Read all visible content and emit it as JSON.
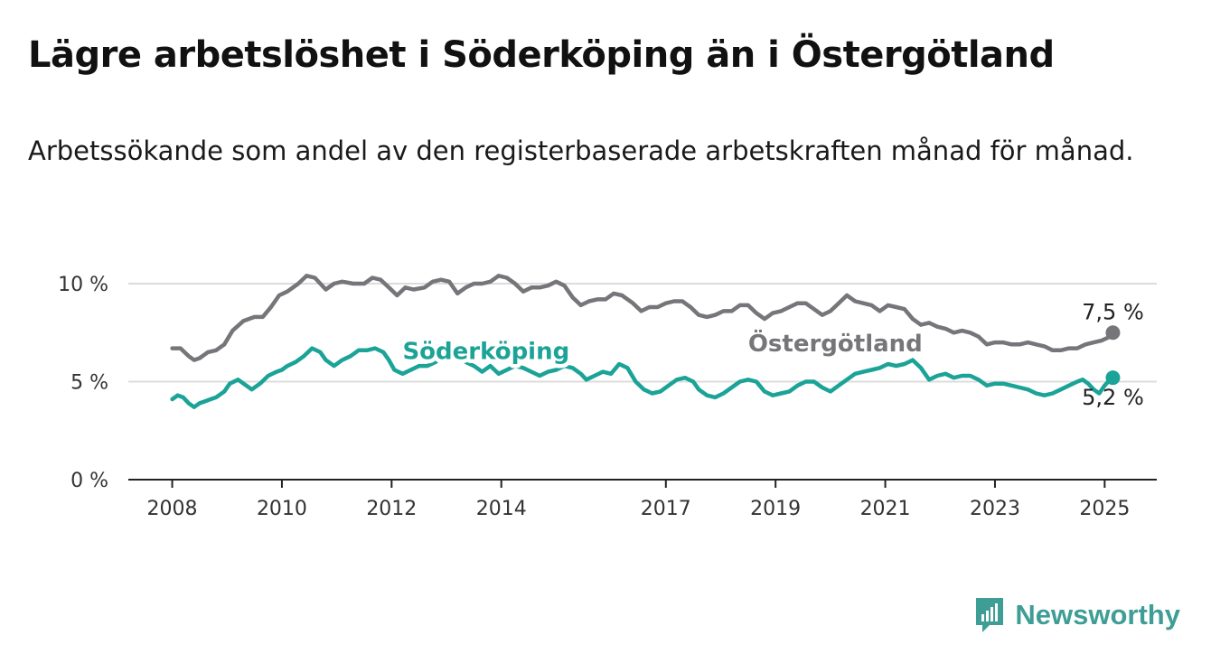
{
  "title": "Lägre arbetslöshet i Söderköping än i Östergötland",
  "subtitle": "Arbetssökande som andel av den registerbaserade arbetskraften månad för månad.",
  "brand": {
    "name": "Newsworthy",
    "icon": "newsworthy-logo-icon",
    "color": "#3e9e95"
  },
  "chart_data": {
    "type": "line",
    "title": "Lägre arbetslöshet i Söderköping än i Östergötland",
    "subtitle": "Arbetssökande som andel av den registerbaserade arbetskraften månad för månad.",
    "x_range": [
      2007.2,
      2025.95
    ],
    "ylim": [
      0,
      10
    ],
    "y_ticks": [
      {
        "value": 0,
        "label": "0 %"
      },
      {
        "value": 5,
        "label": "5 %"
      },
      {
        "value": 10,
        "label": "10 %"
      }
    ],
    "x_ticks": [
      {
        "value": 2008,
        "label": "2008"
      },
      {
        "value": 2010,
        "label": "2010"
      },
      {
        "value": 2012,
        "label": "2012"
      },
      {
        "value": 2014,
        "label": "2014"
      },
      {
        "value": 2017,
        "label": "2017"
      },
      {
        "value": 2019,
        "label": "2019"
      },
      {
        "value": 2021,
        "label": "2021"
      },
      {
        "value": 2023,
        "label": "2023"
      },
      {
        "value": 2025,
        "label": "2025"
      }
    ],
    "grid": true,
    "series": [
      {
        "name": "Östergötland",
        "color": "#76767a",
        "end_label": "7,5 %",
        "points": [
          [
            2008.0,
            6.7
          ],
          [
            2008.15,
            6.7
          ],
          [
            2008.3,
            6.3
          ],
          [
            2008.4,
            6.1
          ],
          [
            2008.5,
            6.2
          ],
          [
            2008.65,
            6.5
          ],
          [
            2008.8,
            6.6
          ],
          [
            2008.95,
            6.9
          ],
          [
            2009.1,
            7.6
          ],
          [
            2009.3,
            8.1
          ],
          [
            2009.5,
            8.3
          ],
          [
            2009.65,
            8.3
          ],
          [
            2009.8,
            8.8
          ],
          [
            2009.95,
            9.4
          ],
          [
            2010.1,
            9.6
          ],
          [
            2010.3,
            10.0
          ],
          [
            2010.45,
            10.4
          ],
          [
            2010.6,
            10.3
          ],
          [
            2010.8,
            9.7
          ],
          [
            2010.95,
            10.0
          ],
          [
            2011.1,
            10.1
          ],
          [
            2011.3,
            10.0
          ],
          [
            2011.5,
            10.0
          ],
          [
            2011.65,
            10.3
          ],
          [
            2011.8,
            10.2
          ],
          [
            2011.95,
            9.8
          ],
          [
            2012.1,
            9.4
          ],
          [
            2012.25,
            9.8
          ],
          [
            2012.4,
            9.7
          ],
          [
            2012.6,
            9.8
          ],
          [
            2012.75,
            10.1
          ],
          [
            2012.9,
            10.2
          ],
          [
            2013.05,
            10.1
          ],
          [
            2013.2,
            9.5
          ],
          [
            2013.35,
            9.8
          ],
          [
            2013.5,
            10.0
          ],
          [
            2013.65,
            10.0
          ],
          [
            2013.8,
            10.1
          ],
          [
            2013.95,
            10.4
          ],
          [
            2014.1,
            10.3
          ],
          [
            2014.25,
            10.0
          ],
          [
            2014.4,
            9.6
          ],
          [
            2014.55,
            9.8
          ],
          [
            2014.7,
            9.8
          ],
          [
            2014.85,
            9.9
          ],
          [
            2015.0,
            10.1
          ],
          [
            2015.15,
            9.9
          ],
          [
            2015.3,
            9.3
          ],
          [
            2015.45,
            8.9
          ],
          [
            2015.6,
            9.1
          ],
          [
            2015.75,
            9.2
          ],
          [
            2015.9,
            9.2
          ],
          [
            2016.05,
            9.5
          ],
          [
            2016.2,
            9.4
          ],
          [
            2016.4,
            9.0
          ],
          [
            2016.55,
            8.6
          ],
          [
            2016.7,
            8.8
          ],
          [
            2016.85,
            8.8
          ],
          [
            2017.0,
            9.0
          ],
          [
            2017.15,
            9.1
          ],
          [
            2017.3,
            9.1
          ],
          [
            2017.45,
            8.8
          ],
          [
            2017.6,
            8.4
          ],
          [
            2017.75,
            8.3
          ],
          [
            2017.9,
            8.4
          ],
          [
            2018.05,
            8.6
          ],
          [
            2018.2,
            8.6
          ],
          [
            2018.35,
            8.9
          ],
          [
            2018.5,
            8.9
          ],
          [
            2018.65,
            8.5
          ],
          [
            2018.8,
            8.2
          ],
          [
            2018.95,
            8.5
          ],
          [
            2019.1,
            8.6
          ],
          [
            2019.25,
            8.8
          ],
          [
            2019.4,
            9.0
          ],
          [
            2019.55,
            9.0
          ],
          [
            2019.7,
            8.7
          ],
          [
            2019.85,
            8.4
          ],
          [
            2020.0,
            8.6
          ],
          [
            2020.15,
            9.0
          ],
          [
            2020.3,
            9.4
          ],
          [
            2020.45,
            9.1
          ],
          [
            2020.6,
            9.0
          ],
          [
            2020.75,
            8.9
          ],
          [
            2020.9,
            8.6
          ],
          [
            2021.05,
            8.9
          ],
          [
            2021.2,
            8.8
          ],
          [
            2021.35,
            8.7
          ],
          [
            2021.5,
            8.2
          ],
          [
            2021.65,
            7.9
          ],
          [
            2021.8,
            8.0
          ],
          [
            2021.95,
            7.8
          ],
          [
            2022.1,
            7.7
          ],
          [
            2022.25,
            7.5
          ],
          [
            2022.4,
            7.6
          ],
          [
            2022.55,
            7.5
          ],
          [
            2022.7,
            7.3
          ],
          [
            2022.85,
            6.9
          ],
          [
            2023.0,
            7.0
          ],
          [
            2023.15,
            7.0
          ],
          [
            2023.3,
            6.9
          ],
          [
            2023.45,
            6.9
          ],
          [
            2023.6,
            7.0
          ],
          [
            2023.75,
            6.9
          ],
          [
            2023.9,
            6.8
          ],
          [
            2024.05,
            6.6
          ],
          [
            2024.2,
            6.6
          ],
          [
            2024.35,
            6.7
          ],
          [
            2024.5,
            6.7
          ],
          [
            2024.65,
            6.9
          ],
          [
            2024.8,
            7.0
          ],
          [
            2024.95,
            7.1
          ],
          [
            2025.1,
            7.3
          ],
          [
            2025.15,
            7.5
          ]
        ]
      },
      {
        "name": "Söderköping",
        "color": "#1ba398",
        "end_label": "5,2 %",
        "points": [
          [
            2008.0,
            4.1
          ],
          [
            2008.1,
            4.3
          ],
          [
            2008.2,
            4.2
          ],
          [
            2008.3,
            3.9
          ],
          [
            2008.4,
            3.7
          ],
          [
            2008.5,
            3.9
          ],
          [
            2008.6,
            4.0
          ],
          [
            2008.7,
            4.1
          ],
          [
            2008.8,
            4.2
          ],
          [
            2008.95,
            4.5
          ],
          [
            2009.05,
            4.9
          ],
          [
            2009.2,
            5.1
          ],
          [
            2009.35,
            4.8
          ],
          [
            2009.45,
            4.6
          ],
          [
            2009.6,
            4.9
          ],
          [
            2009.75,
            5.3
          ],
          [
            2009.9,
            5.5
          ],
          [
            2010.0,
            5.6
          ],
          [
            2010.1,
            5.8
          ],
          [
            2010.25,
            6.0
          ],
          [
            2010.4,
            6.3
          ],
          [
            2010.55,
            6.7
          ],
          [
            2010.7,
            6.5
          ],
          [
            2010.8,
            6.1
          ],
          [
            2010.95,
            5.8
          ],
          [
            2011.1,
            6.1
          ],
          [
            2011.25,
            6.3
          ],
          [
            2011.4,
            6.6
          ],
          [
            2011.55,
            6.6
          ],
          [
            2011.7,
            6.7
          ],
          [
            2011.85,
            6.5
          ],
          [
            2011.95,
            6.1
          ],
          [
            2012.05,
            5.6
          ],
          [
            2012.2,
            5.4
          ],
          [
            2012.35,
            5.6
          ],
          [
            2012.5,
            5.8
          ],
          [
            2012.65,
            5.8
          ],
          [
            2012.8,
            6.0
          ],
          [
            2012.95,
            6.3
          ],
          [
            2013.05,
            6.6
          ],
          [
            2013.2,
            6.4
          ],
          [
            2013.35,
            6.0
          ],
          [
            2013.5,
            5.8
          ],
          [
            2013.65,
            5.5
          ],
          [
            2013.8,
            5.8
          ],
          [
            2013.95,
            5.4
          ],
          [
            2014.1,
            5.6
          ],
          [
            2014.25,
            5.8
          ],
          [
            2014.4,
            5.7
          ],
          [
            2014.55,
            5.5
          ],
          [
            2014.7,
            5.3
          ],
          [
            2014.85,
            5.5
          ],
          [
            2015.0,
            5.6
          ],
          [
            2015.15,
            5.8
          ],
          [
            2015.3,
            5.7
          ],
          [
            2015.45,
            5.4
          ],
          [
            2015.55,
            5.1
          ],
          [
            2015.7,
            5.3
          ],
          [
            2015.85,
            5.5
          ],
          [
            2016.0,
            5.4
          ],
          [
            2016.15,
            5.9
          ],
          [
            2016.3,
            5.7
          ],
          [
            2016.45,
            5.0
          ],
          [
            2016.6,
            4.6
          ],
          [
            2016.75,
            4.4
          ],
          [
            2016.9,
            4.5
          ],
          [
            2017.05,
            4.8
          ],
          [
            2017.2,
            5.1
          ],
          [
            2017.35,
            5.2
          ],
          [
            2017.5,
            5.0
          ],
          [
            2017.6,
            4.6
          ],
          [
            2017.75,
            4.3
          ],
          [
            2017.9,
            4.2
          ],
          [
            2018.05,
            4.4
          ],
          [
            2018.2,
            4.7
          ],
          [
            2018.35,
            5.0
          ],
          [
            2018.5,
            5.1
          ],
          [
            2018.65,
            5.0
          ],
          [
            2018.8,
            4.5
          ],
          [
            2018.95,
            4.3
          ],
          [
            2019.1,
            4.4
          ],
          [
            2019.25,
            4.5
          ],
          [
            2019.4,
            4.8
          ],
          [
            2019.55,
            5.0
          ],
          [
            2019.7,
            5.0
          ],
          [
            2019.85,
            4.7
          ],
          [
            2020.0,
            4.5
          ],
          [
            2020.15,
            4.8
          ],
          [
            2020.3,
            5.1
          ],
          [
            2020.45,
            5.4
          ],
          [
            2020.6,
            5.5
          ],
          [
            2020.75,
            5.6
          ],
          [
            2020.9,
            5.7
          ],
          [
            2021.05,
            5.9
          ],
          [
            2021.2,
            5.8
          ],
          [
            2021.35,
            5.9
          ],
          [
            2021.5,
            6.1
          ],
          [
            2021.65,
            5.7
          ],
          [
            2021.8,
            5.1
          ],
          [
            2021.95,
            5.3
          ],
          [
            2022.1,
            5.4
          ],
          [
            2022.25,
            5.2
          ],
          [
            2022.4,
            5.3
          ],
          [
            2022.55,
            5.3
          ],
          [
            2022.7,
            5.1
          ],
          [
            2022.85,
            4.8
          ],
          [
            2023.0,
            4.9
          ],
          [
            2023.15,
            4.9
          ],
          [
            2023.3,
            4.8
          ],
          [
            2023.45,
            4.7
          ],
          [
            2023.6,
            4.6
          ],
          [
            2023.75,
            4.4
          ],
          [
            2023.9,
            4.3
          ],
          [
            2024.05,
            4.4
          ],
          [
            2024.2,
            4.6
          ],
          [
            2024.35,
            4.8
          ],
          [
            2024.5,
            5.0
          ],
          [
            2024.6,
            5.1
          ],
          [
            2024.7,
            4.9
          ],
          [
            2024.8,
            4.6
          ],
          [
            2024.9,
            4.4
          ],
          [
            2025.0,
            4.8
          ],
          [
            2025.1,
            5.1
          ],
          [
            2025.15,
            5.2
          ]
        ]
      }
    ]
  }
}
